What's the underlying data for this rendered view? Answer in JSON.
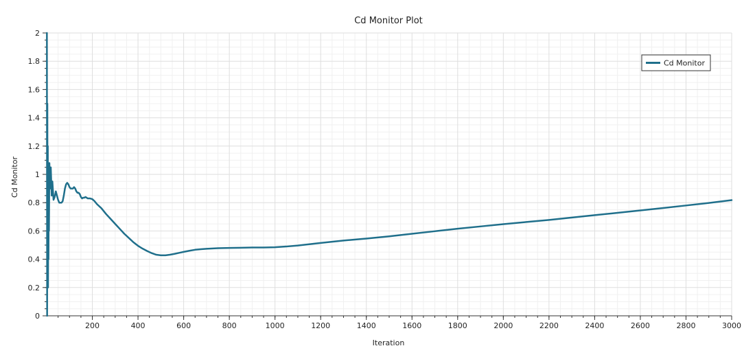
{
  "chart_data": {
    "type": "line",
    "title": "Cd Monitor Plot",
    "xlabel": "Iteration",
    "ylabel": "Cd Monitor",
    "xlim": [
      0,
      3000
    ],
    "ylim": [
      0,
      2
    ],
    "x_ticks": [
      200,
      400,
      600,
      800,
      1000,
      1200,
      1400,
      1600,
      1800,
      2000,
      2200,
      2400,
      2600,
      2800,
      3000
    ],
    "y_ticks": [
      0,
      0.2,
      0.4,
      0.6,
      0.8,
      1,
      1.2,
      1.4,
      1.6,
      1.8,
      2
    ],
    "y_tick_labels": [
      "0",
      "0.2",
      "0.4",
      "0.6",
      "0.8",
      "1",
      "1.2",
      "1.4",
      "1.6",
      "1.8",
      "2"
    ],
    "x_tick_labels": [
      "200",
      "400",
      "600",
      "800",
      "1000",
      "1200",
      "1400",
      "1600",
      "1800",
      "2000",
      "2200",
      "2400",
      "2600",
      "2800",
      "3000"
    ],
    "grid": true,
    "legend_position": "top-right",
    "series": [
      {
        "name": "Cd Monitor",
        "color": "#1f6f8b",
        "points": [
          [
            1,
            2.0
          ],
          [
            2,
            0.0
          ],
          [
            3,
            1.5
          ],
          [
            4,
            0.3
          ],
          [
            5,
            1.2
          ],
          [
            6,
            0.2
          ],
          [
            7,
            1.0
          ],
          [
            8,
            0.4
          ],
          [
            9,
            0.9
          ],
          [
            10,
            0.6
          ],
          [
            12,
            1.08
          ],
          [
            15,
            0.9
          ],
          [
            18,
            1.05
          ],
          [
            22,
            0.85
          ],
          [
            25,
            0.95
          ],
          [
            30,
            0.82
          ],
          [
            35,
            0.84
          ],
          [
            40,
            0.88
          ],
          [
            45,
            0.85
          ],
          [
            50,
            0.82
          ],
          [
            55,
            0.8
          ],
          [
            60,
            0.8
          ],
          [
            65,
            0.8
          ],
          [
            70,
            0.81
          ],
          [
            75,
            0.85
          ],
          [
            80,
            0.9
          ],
          [
            85,
            0.93
          ],
          [
            90,
            0.94
          ],
          [
            95,
            0.93
          ],
          [
            100,
            0.91
          ],
          [
            105,
            0.9
          ],
          [
            110,
            0.9
          ],
          [
            115,
            0.9
          ],
          [
            120,
            0.91
          ],
          [
            125,
            0.9
          ],
          [
            130,
            0.88
          ],
          [
            135,
            0.87
          ],
          [
            140,
            0.87
          ],
          [
            145,
            0.86
          ],
          [
            150,
            0.84
          ],
          [
            155,
            0.83
          ],
          [
            160,
            0.835
          ],
          [
            165,
            0.835
          ],
          [
            170,
            0.84
          ],
          [
            175,
            0.835
          ],
          [
            180,
            0.83
          ],
          [
            190,
            0.83
          ],
          [
            200,
            0.825
          ],
          [
            210,
            0.81
          ],
          [
            220,
            0.79
          ],
          [
            240,
            0.76
          ],
          [
            260,
            0.72
          ],
          [
            280,
            0.685
          ],
          [
            300,
            0.65
          ],
          [
            320,
            0.615
          ],
          [
            340,
            0.58
          ],
          [
            360,
            0.55
          ],
          [
            380,
            0.52
          ],
          [
            400,
            0.495
          ],
          [
            420,
            0.475
          ],
          [
            440,
            0.458
          ],
          [
            460,
            0.443
          ],
          [
            480,
            0.432
          ],
          [
            500,
            0.428
          ],
          [
            520,
            0.428
          ],
          [
            540,
            0.432
          ],
          [
            560,
            0.438
          ],
          [
            580,
            0.445
          ],
          [
            600,
            0.452
          ],
          [
            625,
            0.46
          ],
          [
            650,
            0.467
          ],
          [
            675,
            0.471
          ],
          [
            700,
            0.474
          ],
          [
            750,
            0.478
          ],
          [
            800,
            0.48
          ],
          [
            850,
            0.481
          ],
          [
            900,
            0.483
          ],
          [
            950,
            0.483
          ],
          [
            1000,
            0.485
          ],
          [
            1050,
            0.49
          ],
          [
            1100,
            0.497
          ],
          [
            1150,
            0.506
          ],
          [
            1200,
            0.515
          ],
          [
            1300,
            0.532
          ],
          [
            1400,
            0.546
          ],
          [
            1500,
            0.562
          ],
          [
            1600,
            0.58
          ],
          [
            1700,
            0.598
          ],
          [
            1800,
            0.616
          ],
          [
            1900,
            0.632
          ],
          [
            2000,
            0.648
          ],
          [
            2100,
            0.663
          ],
          [
            2200,
            0.678
          ],
          [
            2300,
            0.695
          ],
          [
            2400,
            0.712
          ],
          [
            2500,
            0.728
          ],
          [
            2600,
            0.745
          ],
          [
            2700,
            0.762
          ],
          [
            2800,
            0.78
          ],
          [
            2900,
            0.798
          ],
          [
            3000,
            0.818
          ]
        ]
      }
    ]
  }
}
